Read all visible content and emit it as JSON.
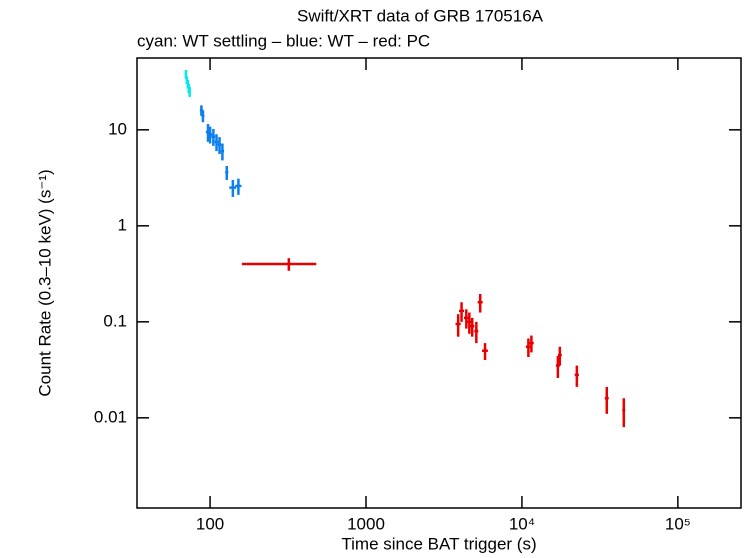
{
  "chart_data": {
    "type": "scatter",
    "title": "Swift/XRT data of GRB 170516A",
    "subtitle": "cyan: WT settling – blue: WT – red: PC",
    "x_label": "Time since BAT trigger (s)",
    "y_label": "Count Rate (0.3–10 keV) (s⁻¹)",
    "xscale": "log",
    "yscale": "log",
    "xlim": [
      34,
      254000
    ],
    "ylim": [
      0.00115,
      56
    ],
    "xticks": [
      100,
      1000,
      {
        "value": 10000,
        "label": "10⁴"
      },
      {
        "value": 100000,
        "label": "10⁵"
      }
    ],
    "yticks": [
      10,
      1,
      0.1,
      0.01
    ],
    "series": [
      {
        "color": "#00e8f0",
        "x": [
          70,
          71,
          72,
          73,
          74
        ],
        "values": [
          38,
          33,
          30,
          27,
          25
        ],
        "xerr": [
          0.5,
          0.5,
          0.5,
          0.5,
          0.5
        ],
        "yerr": [
          4,
          3,
          3,
          3,
          3
        ]
      },
      {
        "color": "#0b7fee",
        "x": [
          88,
          90,
          97,
          100,
          105,
          110,
          115,
          120,
          128,
          140,
          152
        ],
        "values": [
          16,
          14,
          9.5,
          9,
          8.5,
          7.5,
          7,
          6,
          3.6,
          2.5,
          2.6
        ],
        "xerr": [
          2,
          2,
          3,
          3,
          3,
          3,
          3,
          3,
          3,
          7,
          7
        ],
        "yerr": [
          2,
          2,
          2,
          1.8,
          1.7,
          1.5,
          1.4,
          1.2,
          0.6,
          0.5,
          0.5
        ]
      },
      {
        "color": "#e80000",
        "x": [
          320,
          3900,
          4100,
          4400,
          4600,
          4800,
          5100,
          5400,
          5800,
          11000,
          11500,
          17000,
          17500,
          22500,
          35000,
          45000
        ],
        "values": [
          0.4,
          0.095,
          0.13,
          0.11,
          0.1,
          0.09,
          0.08,
          0.16,
          0.05,
          0.055,
          0.06,
          0.035,
          0.045,
          0.028,
          0.016,
          0.012
        ],
        "xerr": [
          160,
          150,
          150,
          150,
          150,
          150,
          150,
          200,
          250,
          400,
          400,
          500,
          500,
          700,
          1000,
          1000
        ],
        "yerr": [
          0.06,
          0.025,
          0.03,
          0.025,
          0.025,
          0.02,
          0.02,
          0.035,
          0.01,
          0.012,
          0.012,
          0.009,
          0.01,
          0.007,
          0.005,
          0.004
        ]
      }
    ]
  }
}
